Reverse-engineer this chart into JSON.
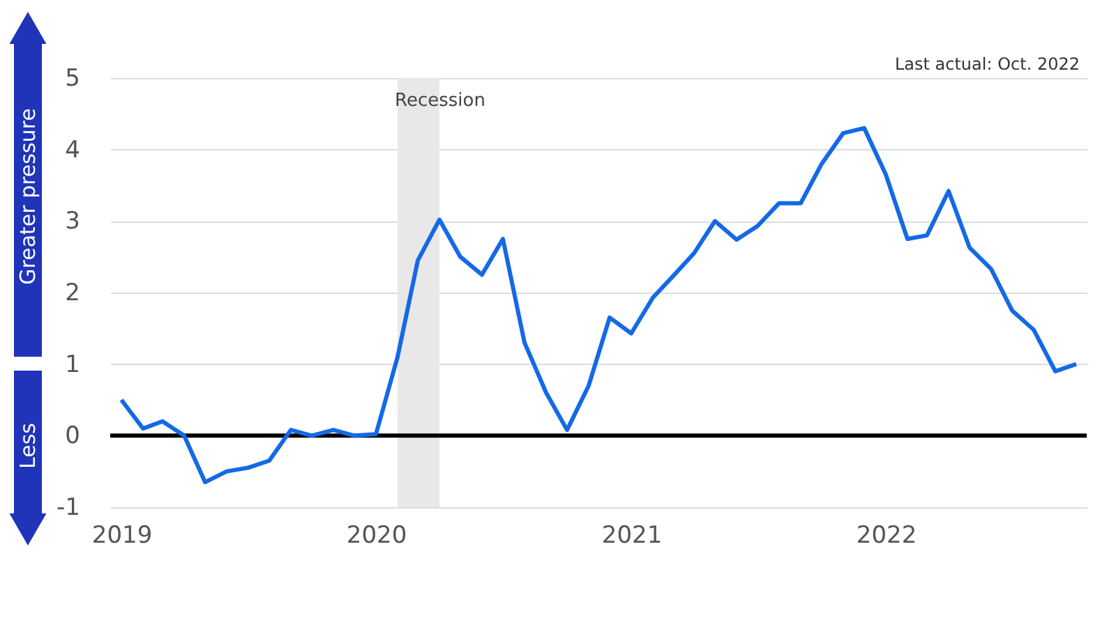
{
  "chart_data": {
    "type": "line",
    "ylabel": "Greater pressure",
    "annotations": [
      "Less",
      "Last actual:  Oct. 2022"
    ],
    "x": [
      "2019-01",
      "2019-02",
      "2019-03",
      "2019-04",
      "2019-05",
      "2019-06",
      "2019-07",
      "2019-08",
      "2019-09",
      "2019-10",
      "2019-11",
      "2019-12",
      "2020-01",
      "2020-02",
      "2020-03",
      "2020-04",
      "2020-05",
      "2020-06",
      "2020-07",
      "2020-08",
      "2020-09",
      "2020-10",
      "2020-11",
      "2020-12",
      "2021-01",
      "2021-02",
      "2021-03",
      "2021-04",
      "2021-05",
      "2021-06",
      "2021-07",
      "2021-08",
      "2021-09",
      "2021-10",
      "2021-11",
      "2021-12",
      "2022-01",
      "2022-02",
      "2022-03",
      "2022-04",
      "2022-05",
      "2022-06",
      "2022-07",
      "2022-08",
      "2022-09",
      "2022-10"
    ],
    "series": [
      {
        "color": "#1469e6",
        "values": [
          0.5,
          0.1,
          0.2,
          0.0,
          -0.65,
          -0.5,
          -0.45,
          -0.35,
          0.08,
          0.0,
          0.08,
          0.0,
          0.02,
          1.1,
          2.45,
          3.02,
          2.5,
          2.25,
          2.75,
          1.3,
          0.6,
          0.08,
          0.7,
          1.65,
          1.43,
          1.93,
          2.22,
          2.55,
          3.0,
          2.74,
          2.93,
          3.25,
          3.25,
          3.8,
          4.23,
          4.3,
          3.65,
          2.75,
          2.8,
          3.42,
          2.63,
          2.33,
          1.75,
          1.48,
          0.9,
          1.0
        ]
      }
    ],
    "xlim": [
      "2018-12-16",
      "2022-10-16"
    ],
    "xticks": [
      {
        "value": "2019-01-01",
        "label": "2019"
      },
      {
        "value": "2020-01-01",
        "label": "2020"
      },
      {
        "value": "2021-01-01",
        "label": "2021"
      },
      {
        "value": "2022-01-01",
        "label": "2022"
      }
    ],
    "ylim": [
      -1,
      5
    ],
    "yticks": [
      -1,
      0,
      1,
      2,
      3,
      4,
      5
    ],
    "grid": "y",
    "ref_lines": [
      {
        "axis": "y",
        "value": 0,
        "color": "#000000"
      }
    ],
    "bands": [
      {
        "axis": "x",
        "from": "2020-02",
        "to": "2020-04",
        "label": "Recession",
        "color": "#e8e8e8"
      }
    ],
    "legend": false,
    "marker": "none",
    "line_style": "solid"
  }
}
